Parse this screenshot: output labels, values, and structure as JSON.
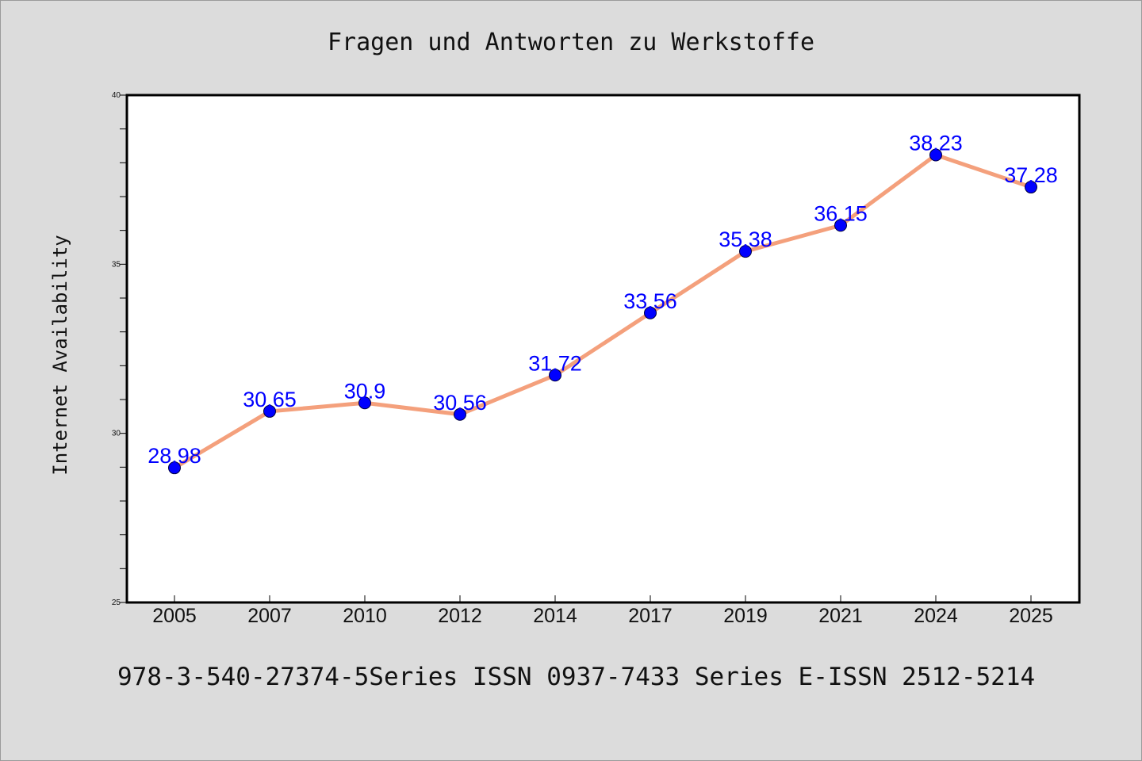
{
  "chart_data": {
    "type": "line",
    "title": "Fragen und Antworten zu Werkstoffe",
    "xlabel": "",
    "ylabel": "Internet Availability",
    "categories": [
      "2005",
      "2007",
      "2010",
      "2012",
      "2014",
      "2017",
      "2019",
      "2021",
      "2024",
      "2025"
    ],
    "series": [
      {
        "values": [
          28.98,
          30.65,
          30.9,
          30.56,
          31.72,
          33.56,
          35.38,
          36.15,
          38.23,
          37.28
        ],
        "labels": [
          "28.98",
          "30.65",
          "30.9",
          "30.56",
          "31.72",
          "33.56",
          "35.38",
          "36.15",
          "38.23",
          "37.28"
        ]
      }
    ],
    "ylim": [
      25,
      40
    ],
    "yticks": [
      "25",
      "30",
      "35",
      "40"
    ],
    "grid": false,
    "line_color": "#f4a07c",
    "marker_color": "#0000ff",
    "label_color": "#0000ff"
  },
  "footer": {
    "text": "978-3-540-27374-5Series ISSN 0937-7433 Series E-ISSN 2512-5214"
  },
  "colors": {
    "background": "#dcdcdc",
    "plot_background": "#ffffff"
  }
}
